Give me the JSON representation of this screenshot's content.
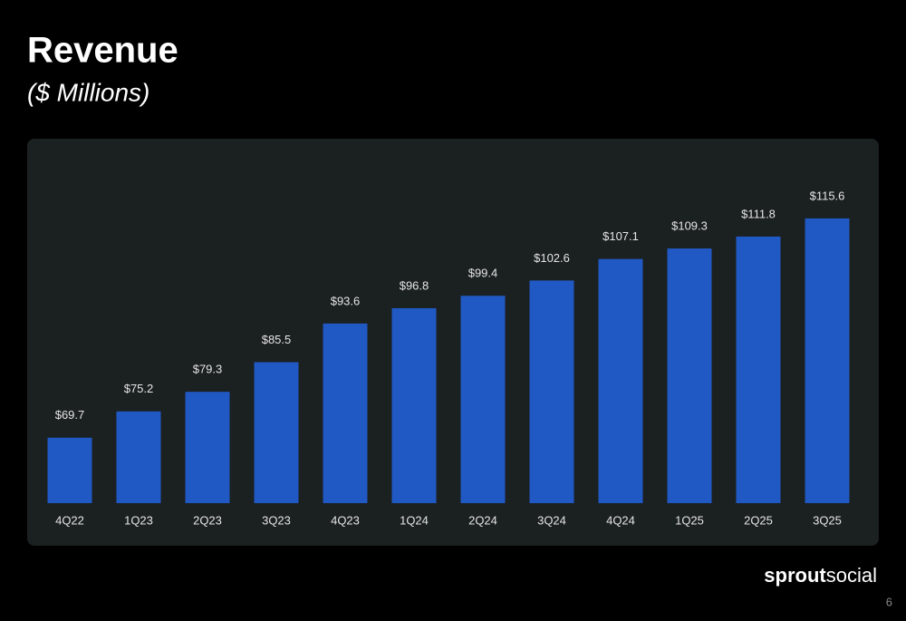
{
  "chart_data": {
    "type": "bar",
    "title": "Revenue",
    "subtitle": "($ Millions)",
    "categories": [
      "4Q22",
      "1Q23",
      "2Q23",
      "3Q23",
      "4Q23",
      "1Q24",
      "2Q24",
      "3Q24",
      "4Q24",
      "1Q25",
      "2Q25",
      "3Q25"
    ],
    "values": [
      69.7,
      75.2,
      79.3,
      85.5,
      93.6,
      96.8,
      99.4,
      102.6,
      107.1,
      109.3,
      111.8,
      115.6
    ],
    "value_labels": [
      "$69.7",
      "$75.2",
      "$79.3",
      "$85.5",
      "$93.6",
      "$96.8",
      "$99.4",
      "$102.6",
      "$107.1",
      "$109.3",
      "$111.8",
      "$115.6"
    ],
    "color": "#2159c4",
    "ylim": [
      56,
      130
    ]
  },
  "logo": [
    "sprout",
    "social"
  ],
  "page_number": "6"
}
